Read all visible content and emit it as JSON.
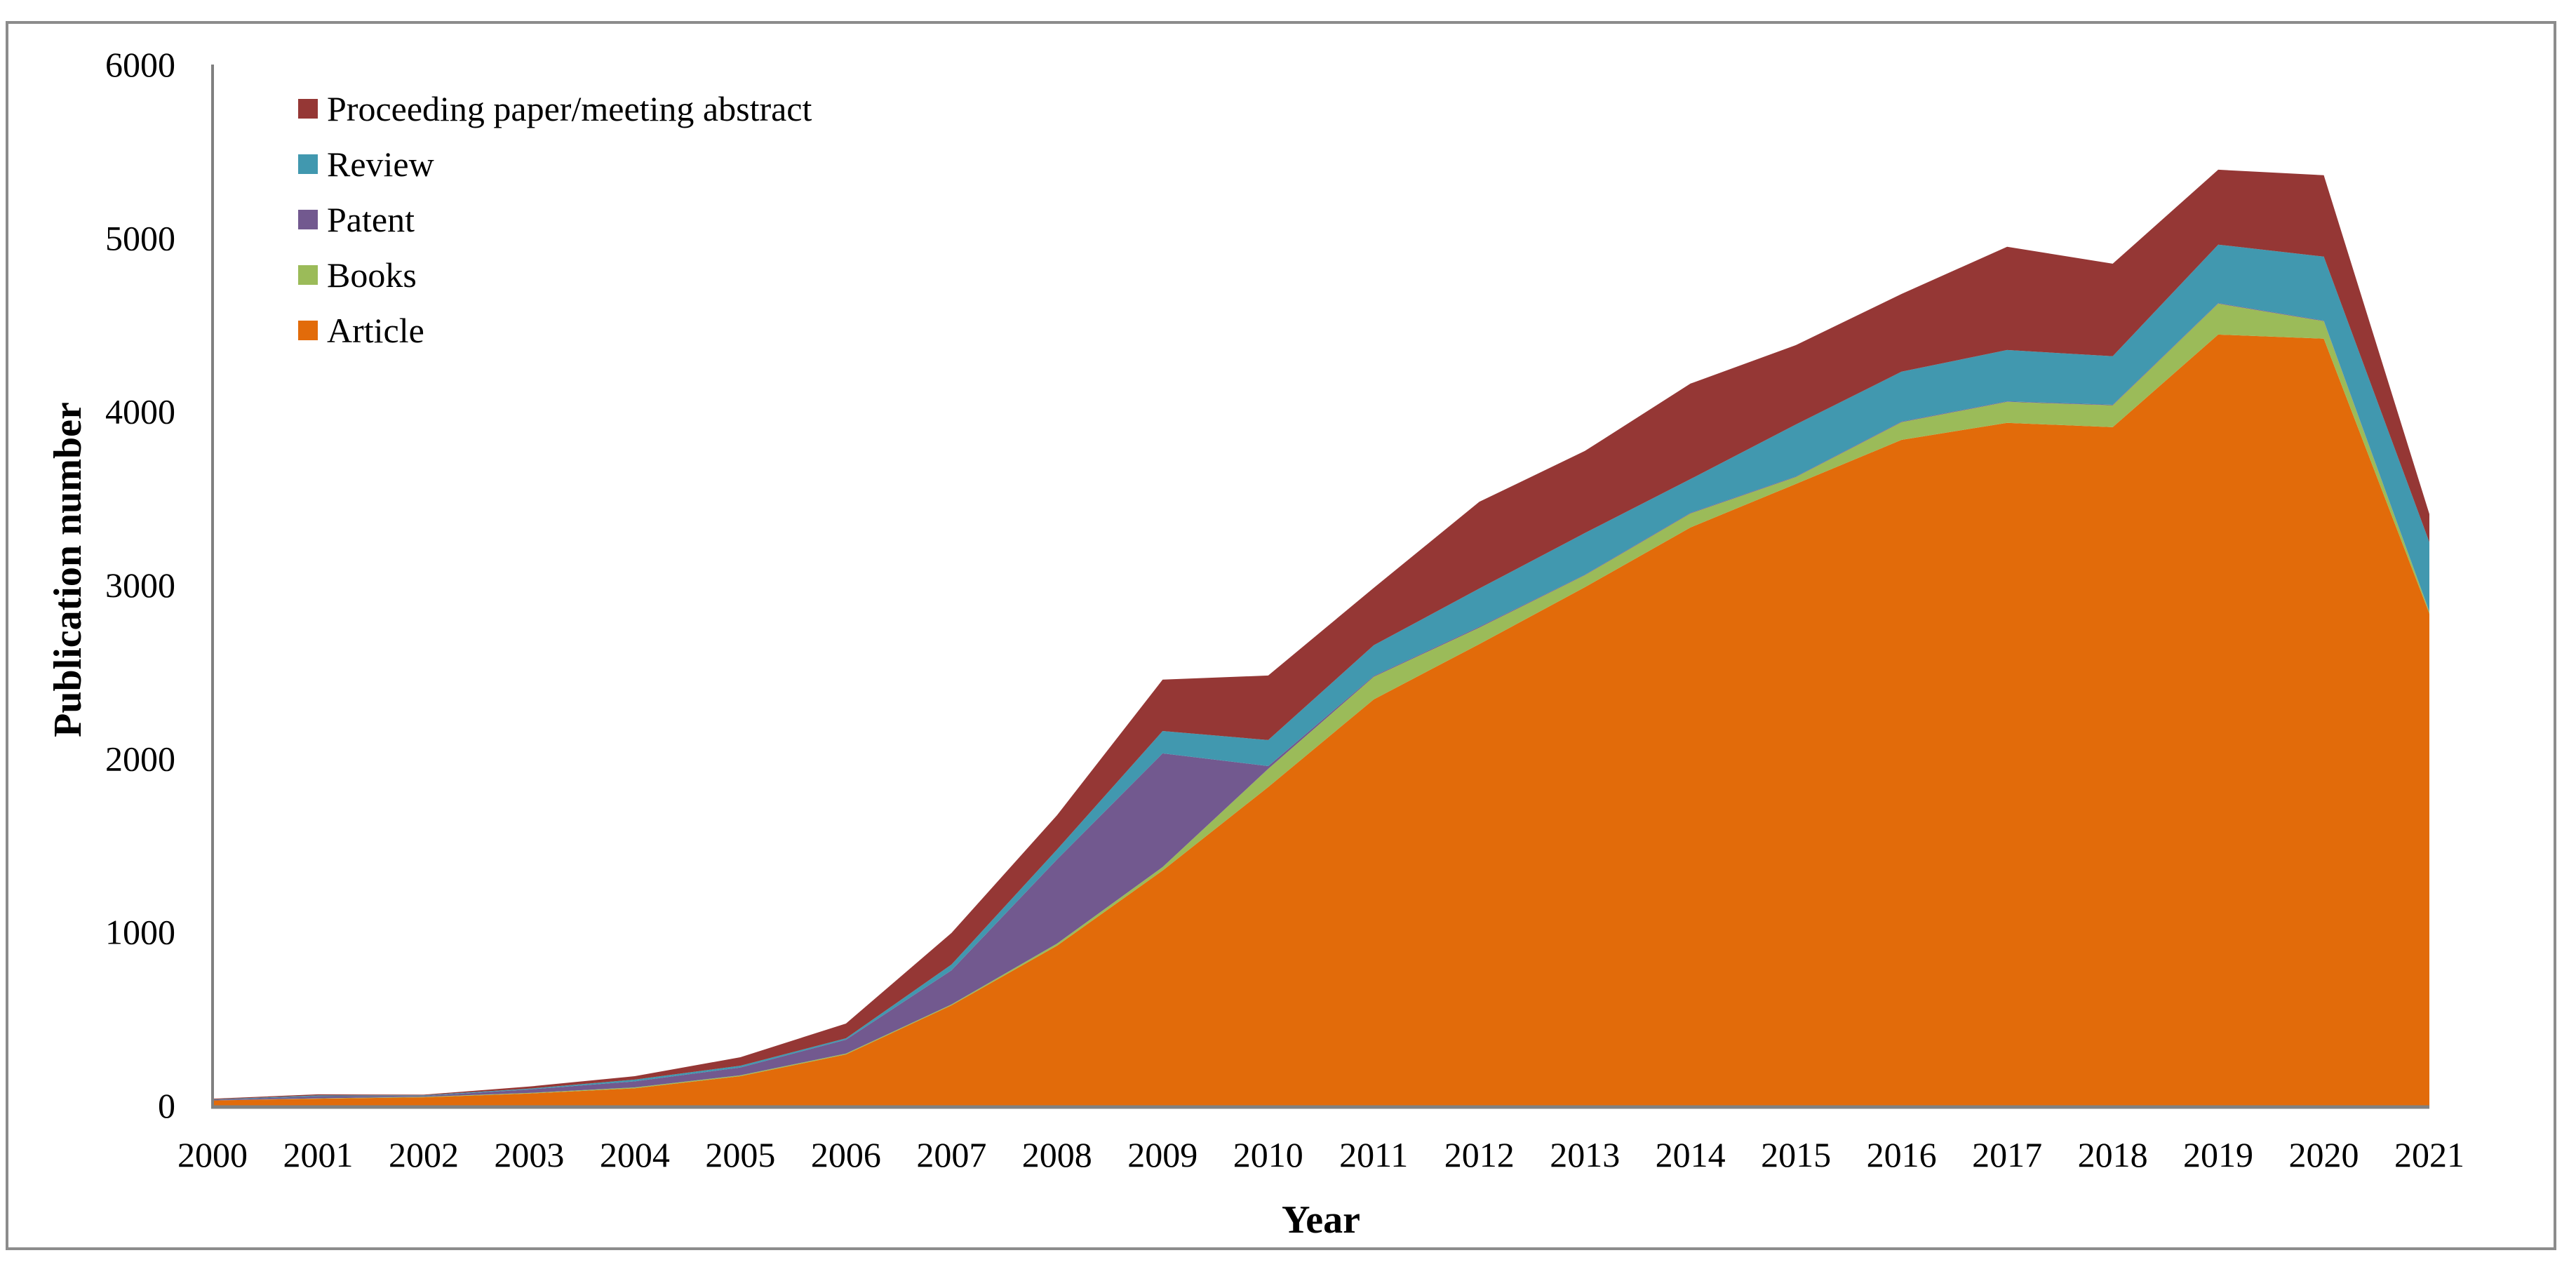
{
  "chart_data": {
    "type": "area",
    "stacked": true,
    "title": "",
    "xlabel": "Year",
    "ylabel": "Publication number",
    "ylim": [
      0,
      6000
    ],
    "yticks": [
      0,
      1000,
      2000,
      3000,
      4000,
      5000,
      6000
    ],
    "grid": false,
    "legend_position": "top-left",
    "categories": [
      "2000",
      "2001",
      "2002",
      "2003",
      "2004",
      "2005",
      "2006",
      "2007",
      "2008",
      "2009",
      "2010",
      "2011",
      "2012",
      "2013",
      "2014",
      "2015",
      "2016",
      "2017",
      "2018",
      "2019",
      "2020",
      "2021"
    ],
    "series": [
      {
        "name": "Article",
        "color": "#e26b0a",
        "values": [
          30,
          40,
          48,
          70,
          100,
          170,
          295,
          578,
          922,
          1355,
          1836,
          2341,
          2660,
          2988,
          3332,
          3583,
          3837,
          3935,
          3910,
          4444,
          4420,
          2835
        ]
      },
      {
        "name": "Books",
        "color": "#9bbb59",
        "values": [
          0,
          2,
          3,
          3,
          5,
          5,
          5,
          5,
          12,
          20,
          105,
          130,
          95,
          69,
          81,
          40,
          102,
          121,
          126,
          178,
          101,
          10
        ]
      },
      {
        "name": "Patent",
        "color": "#72598f",
        "values": [
          3,
          12,
          5,
          20,
          35,
          45,
          80,
          197,
          485,
          655,
          16,
          5,
          5,
          3,
          3,
          3,
          3,
          3,
          3,
          3,
          3,
          2
        ]
      },
      {
        "name": "Review",
        "color": "#4198af",
        "values": [
          3,
          5,
          4,
          5,
          10,
          10,
          8,
          33,
          57,
          129,
          150,
          177,
          220,
          240,
          195,
          300,
          288,
          296,
          280,
          337,
          369,
          400
        ]
      },
      {
        "name": "Proceeding paper/meeting abstract",
        "color": "#953735",
        "values": [
          4,
          6,
          3,
          12,
          20,
          49,
          85,
          182,
          198,
          296,
          372,
          331,
          500,
          473,
          550,
          457,
          448,
          595,
          533,
          432,
          469,
          162
        ]
      }
    ],
    "legend_order": [
      "Proceeding paper/meeting abstract",
      "Review",
      "Patent",
      "Books",
      "Article"
    ]
  },
  "colors": {
    "axis": "#808080",
    "frame": "#8c8c8c",
    "text": "#000000"
  }
}
